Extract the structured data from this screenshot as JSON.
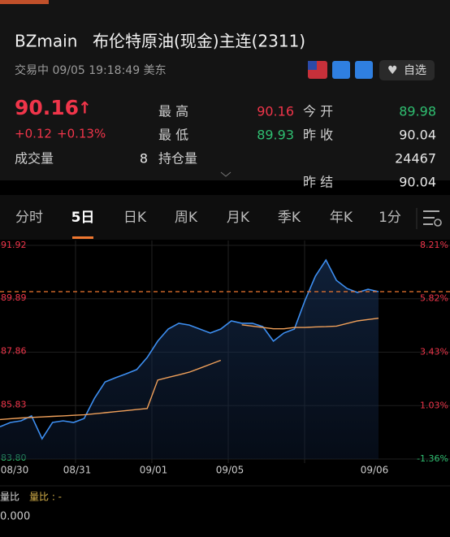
{
  "header": {
    "symbol": "BZmain",
    "name": "布伦特原油(现金)主连(2311)",
    "status": "交易中 09/05 19:18:49 美东",
    "watch": "自选"
  },
  "quote": {
    "price": "90.16",
    "change": "+0.12",
    "change_pct": "+0.13%",
    "stats": [
      [
        "最 高",
        "90.16",
        "今 开",
        "89.98"
      ],
      [
        "最 低",
        "89.93",
        "昨 收",
        "90.04"
      ],
      [
        "成交量",
        "8",
        "持仓量",
        "24467"
      ],
      [
        "",
        "",
        "昨 结",
        "90.04"
      ]
    ]
  },
  "tabs": [
    "分时",
    "5日",
    "日K",
    "周K",
    "月K",
    "季K",
    "年K",
    "1分"
  ],
  "chart": {
    "type": "line",
    "x_labels": [
      "08/30",
      "08/31",
      "09/01",
      "09/05",
      "09/06"
    ],
    "ylim": [
      83.8,
      91.92
    ],
    "yticks": [
      {
        "value": 91.92,
        "label": "91.92"
      },
      {
        "value": 89.89,
        "label": "89.89"
      },
      {
        "value": 87.86,
        "label": "87.86"
      },
      {
        "value": 85.83,
        "label": "85.83"
      },
      {
        "value": 83.8,
        "label": "83.80"
      }
    ],
    "y2lim": [
      -1.36,
      8.21
    ],
    "y2ticks": [
      {
        "value": 8.21,
        "label": "8.21%"
      },
      {
        "value": 5.82,
        "label": "5.82%"
      },
      {
        "value": 3.43,
        "label": "3.43%"
      },
      {
        "value": 1.03,
        "label": "1.03%"
      },
      {
        "value": -1.36,
        "label": "-1.36%"
      }
    ],
    "ref_line": 90.16,
    "series": [
      {
        "color": "#3d8ef0",
        "values": [
          85.03,
          85.19,
          85.25,
          85.44,
          84.57,
          85.19,
          85.25,
          85.19,
          85.34,
          86.12,
          86.73,
          86.89,
          87.04,
          87.2,
          87.66,
          88.28,
          88.74,
          88.96,
          88.89,
          88.74,
          88.59,
          88.74,
          89.05,
          88.96,
          88.96,
          88.83,
          88.28,
          88.59,
          88.74,
          89.82,
          90.75,
          91.36,
          90.59,
          90.28,
          90.13,
          90.25,
          90.16
        ]
      },
      {
        "color": "#f0a05a",
        "values": [
          85.3,
          85.33,
          85.36,
          85.38,
          85.4,
          85.42,
          85.44,
          85.46,
          85.48,
          85.52,
          85.56,
          85.6,
          85.64,
          85.68,
          85.72,
          86.8,
          86.9,
          87.0,
          87.1,
          87.25,
          87.4,
          87.55,
          null,
          88.9,
          88.85,
          88.8,
          88.75,
          88.75,
          88.8,
          88.8,
          88.82,
          88.83,
          88.85,
          88.95,
          89.05,
          89.1,
          89.15
        ]
      }
    ]
  },
  "volume": {
    "label": "量比",
    "legend": "量比 : -",
    "value": "0.000"
  }
}
